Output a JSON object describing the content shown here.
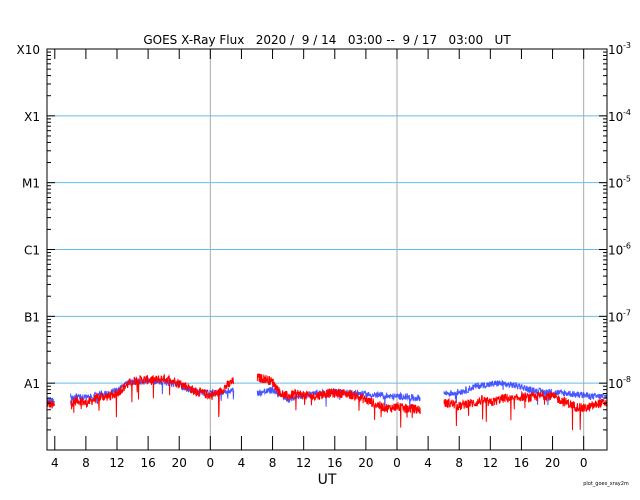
{
  "chart_data": {
    "type": "line",
    "title": "GOES X-Ray Flux   2020 /  9 / 14   03:00 --  9 / 17   03:00   UT",
    "xlabel": "UT",
    "ylabel_left_classes": [
      "X10",
      "X1",
      "M1",
      "C1",
      "B1",
      "A1"
    ],
    "ylabel_right_exponents": [
      "-3",
      "-4",
      "-5",
      "-6",
      "-7",
      "-8"
    ],
    "right_base": "10",
    "yscale": "log",
    "ylim_log10": [
      -9,
      -3
    ],
    "xlim_hours": [
      0,
      72
    ],
    "start_hour_of_day": 3,
    "x_tick_labels": [
      "4",
      "8",
      "12",
      "16",
      "20",
      "0",
      "4",
      "8",
      "12",
      "16",
      "20",
      "0",
      "4",
      "8",
      "12",
      "16",
      "20",
      "0"
    ],
    "grid": "horizontal at flare class levels, vertical at day boundaries",
    "credit": "plot_goes_xray2m",
    "colors": {
      "red": "#ff0000",
      "blue": "#3344ff",
      "grid_h": "#66bbee",
      "grid_v": "#aaaaaa"
    },
    "series": [
      {
        "name": "red",
        "color": "#ff0000",
        "unit": "log10 W/m^2, hourly",
        "values": [
          -8.3,
          -8.35,
          null,
          -8.3,
          -8.25,
          -8.3,
          -8.25,
          -8.2,
          -8.2,
          -8.15,
          -8.05,
          -7.97,
          -7.95,
          -7.95,
          -7.95,
          -7.93,
          -7.95,
          -8.0,
          -8.05,
          -8.12,
          -8.15,
          -8.18,
          -8.15,
          -8.05,
          -7.97,
          null,
          null,
          -7.92,
          -7.93,
          -7.98,
          -8.15,
          -8.2,
          -8.15,
          -8.18,
          -8.2,
          -8.18,
          -8.15,
          -8.15,
          -8.15,
          -8.17,
          -8.2,
          -8.25,
          -8.3,
          -8.35,
          -8.38,
          -8.35,
          -8.38,
          -8.38,
          -8.4,
          null,
          null,
          -8.3,
          -8.3,
          -8.35,
          -8.3,
          -8.3,
          -8.25,
          -8.3,
          -8.25,
          -8.22,
          -8.25,
          -8.2,
          -8.22,
          -8.2,
          -8.18,
          -8.2,
          -8.25,
          -8.3,
          -8.35,
          -8.38,
          -8.35,
          -8.3,
          -8.3
        ]
      },
      {
        "name": "blue",
        "color": "#3344ff",
        "unit": "log10 W/m^2, hourly",
        "values": [
          -8.25,
          -8.28,
          null,
          -8.22,
          -8.2,
          -8.22,
          -8.2,
          -8.17,
          -8.15,
          -8.1,
          -8.03,
          -7.98,
          -7.97,
          -7.97,
          -7.97,
          -7.98,
          -8.0,
          -8.03,
          -8.08,
          -8.12,
          -8.14,
          -8.15,
          -8.15,
          -8.12,
          -8.1,
          null,
          null,
          -8.15,
          -8.13,
          -8.1,
          -8.18,
          -8.25,
          -8.2,
          -8.18,
          -8.17,
          -8.15,
          -8.15,
          -8.13,
          -8.14,
          -8.15,
          -8.15,
          -8.17,
          -8.18,
          -8.18,
          -8.2,
          -8.2,
          -8.2,
          -8.22,
          -8.22,
          null,
          null,
          -8.15,
          -8.15,
          -8.13,
          -8.1,
          -8.05,
          -8.03,
          -8.02,
          -8.0,
          -8.02,
          -8.03,
          -8.05,
          -8.1,
          -8.12,
          -8.13,
          -8.13,
          -8.15,
          -8.15,
          -8.17,
          -8.18,
          -8.2,
          -8.2,
          -8.2
        ]
      }
    ]
  }
}
